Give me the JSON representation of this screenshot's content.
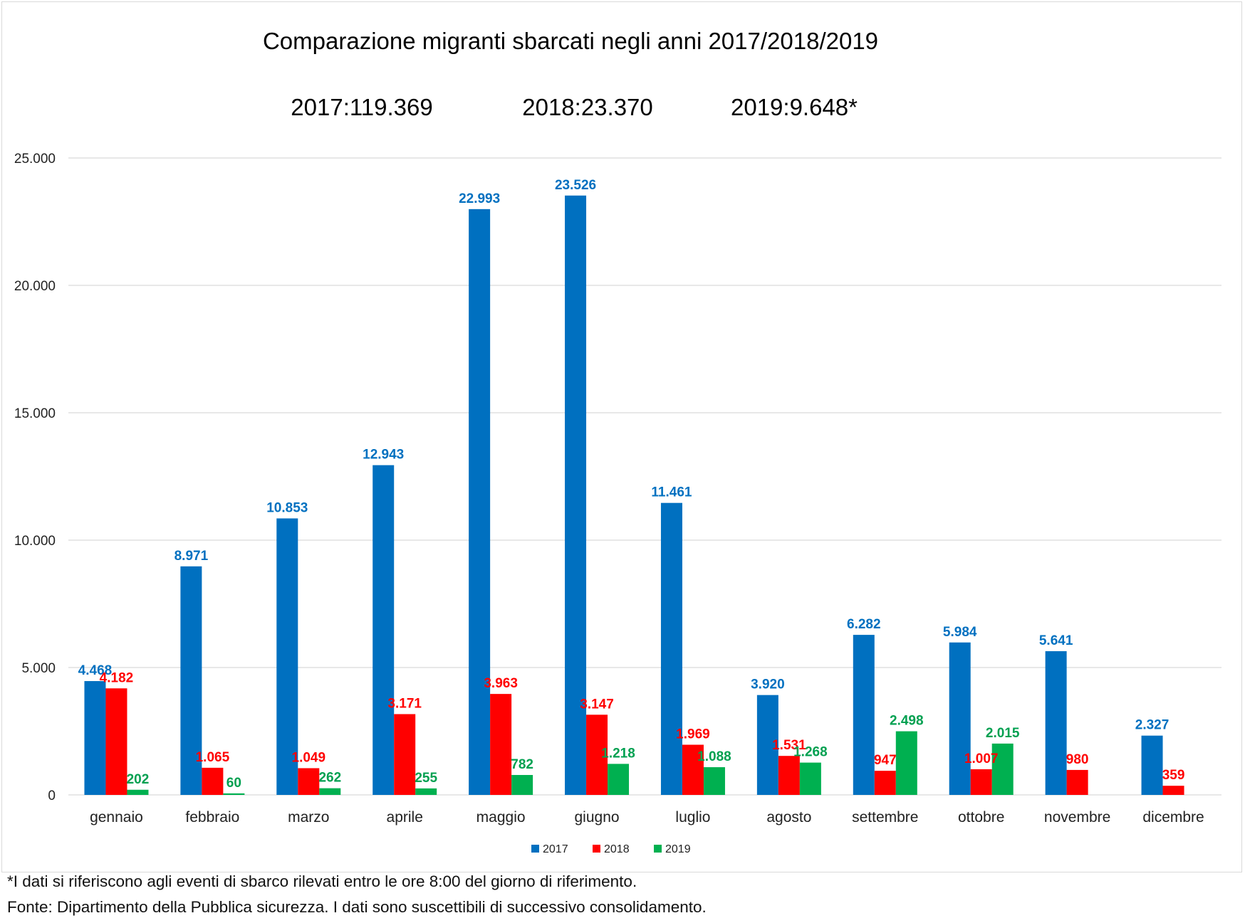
{
  "chart_data": {
    "type": "bar",
    "title": "Comparazione migranti sbarcati negli anni 2017/2018/2019",
    "totals": [
      "2017:119.369",
      "2018:23.370",
      "2019:9.648*"
    ],
    "categories": [
      "gennaio",
      "febbraio",
      "marzo",
      "aprile",
      "maggio",
      "giugno",
      "luglio",
      "agosto",
      "settembre",
      "ottobre",
      "novembre",
      "dicembre"
    ],
    "series": [
      {
        "name": "2017",
        "color": "#0070c0",
        "values": [
          4468,
          8971,
          10853,
          12943,
          22993,
          23526,
          11461,
          3920,
          6282,
          5984,
          5641,
          2327
        ],
        "labels": [
          "4.468",
          "8.971",
          "10.853",
          "12.943",
          "22.993",
          "23.526",
          "11.461",
          "3.920",
          "6.282",
          "5.984",
          "5.641",
          "2.327"
        ]
      },
      {
        "name": "2018",
        "color": "#ff0000",
        "values": [
          4182,
          1065,
          1049,
          3171,
          3963,
          3147,
          1969,
          1531,
          947,
          1007,
          980,
          359
        ],
        "labels": [
          "4.182",
          "1.065",
          "1.049",
          "3.171",
          "3.963",
          "3.147",
          "1.969",
          "1.531",
          "947",
          "1.007",
          "980",
          "359"
        ]
      },
      {
        "name": "2019",
        "color": "#00b050",
        "values": [
          202,
          60,
          262,
          255,
          782,
          1218,
          1088,
          1268,
          2498,
          2015,
          null,
          null
        ],
        "labels": [
          "202",
          "60",
          "262",
          "255",
          "782",
          "1.218",
          "1.088",
          "1.268",
          "2.498",
          "2.015",
          null,
          null
        ]
      }
    ],
    "yticks": [
      0,
      5000,
      10000,
      15000,
      20000,
      25000
    ],
    "ytick_labels": [
      "0",
      "5.000",
      "10.000",
      "15.000",
      "20.000",
      "25.000"
    ],
    "ylim": [
      0,
      25000
    ],
    "grid": true,
    "legend": "bottom-center",
    "label_colors": {
      "2017": "#0070c0",
      "2018": "#ff0000",
      "2019": "#00a050"
    },
    "gridline_color": "#d9d9d9"
  },
  "footnotes": {
    "note": "*I dati si riferiscono agli eventi di sbarco rilevati entro le ore 8:00 del giorno di riferimento.",
    "source": "Fonte: Dipartimento della Pubblica sicurezza. I dati sono suscettibili di successivo consolidamento."
  }
}
